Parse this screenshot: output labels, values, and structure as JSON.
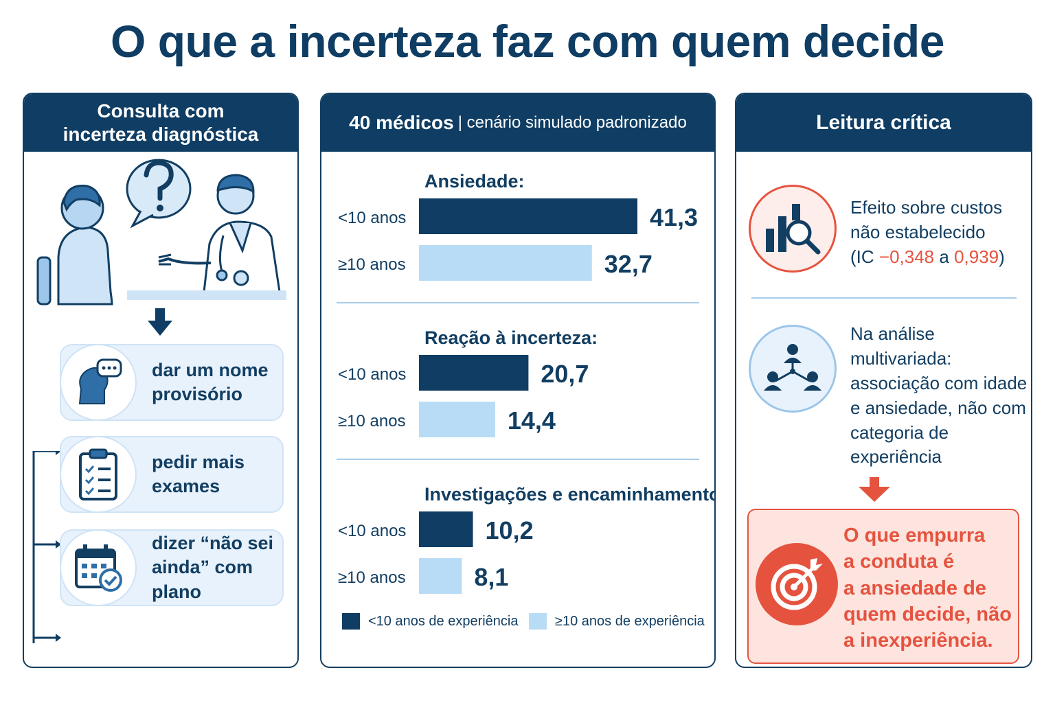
{
  "title": "O que a incerteza faz com quem decide",
  "left_panel": {
    "header_line1": "Consulta com",
    "header_line2": "incerteza diagnóstica",
    "options": [
      {
        "line1": "dar um nome",
        "line2": "provisório",
        "icon": "chat-head-icon"
      },
      {
        "line1": "pedir mais",
        "line2": "exames",
        "icon": "clipboard-checklist-icon"
      },
      {
        "line1": "dizer “não sei",
        "line2": "ainda” com plano",
        "icon": "calendar-check-icon"
      }
    ]
  },
  "middle_panel": {
    "header_main": "40 médicos",
    "header_sub": "| cenário simulado padronizado",
    "legend": [
      "<10 anos de experiência",
      "≥10 anos de experiência"
    ]
  },
  "right_panel": {
    "header": "Leitura crítica",
    "block1": {
      "line1": "Efeito sobre custos",
      "line2": "não estabelecido",
      "ci_prefix": "(IC ",
      "ci_low": "−0,348",
      "ci_mid": " a ",
      "ci_high": "0,939",
      "ci_suffix": ")"
    },
    "block2": {
      "lines": [
        "Na análise",
        "multivariada:",
        "associação com idade",
        "e ansiedade, não com",
        "categoria de",
        "experiência"
      ]
    },
    "conclusion": [
      "O que empurra",
      "a conduta é",
      "a ansiedade de",
      "quem decide, não",
      "a inexperiência."
    ]
  },
  "colors": {
    "navy": "#0f3d63",
    "light_blue": "#b9dcf6",
    "accent_red": "#e5533f",
    "pale_red": "#fde4df"
  },
  "chart_data": {
    "type": "bar",
    "orientation": "horizontal",
    "groups": [
      {
        "label": "Ansiedade:",
        "bars": [
          {
            "category": "<10 anos",
            "value": 41.3,
            "label": "41,3"
          },
          {
            "category": "≥10 anos",
            "value": 32.7,
            "label": "32,7"
          }
        ]
      },
      {
        "label": "Reação à incerteza:",
        "bars": [
          {
            "category": "<10 anos",
            "value": 20.7,
            "label": "20,7"
          },
          {
            "category": "≥10 anos",
            "value": 14.4,
            "label": "14,4"
          }
        ]
      },
      {
        "label": "Investigações e encaminhamentos:",
        "bars": [
          {
            "category": "<10 anos",
            "value": 10.2,
            "label": "10,2"
          },
          {
            "category": "≥10 anos",
            "value": 8.1,
            "label": "8,1"
          }
        ]
      }
    ],
    "series": [
      {
        "name": "<10 anos de experiência",
        "color": "#0f3d63"
      },
      {
        "name": "≥10 anos de experiência",
        "color": "#b9dcf6"
      }
    ],
    "grid": false,
    "legend_position": "bottom"
  }
}
